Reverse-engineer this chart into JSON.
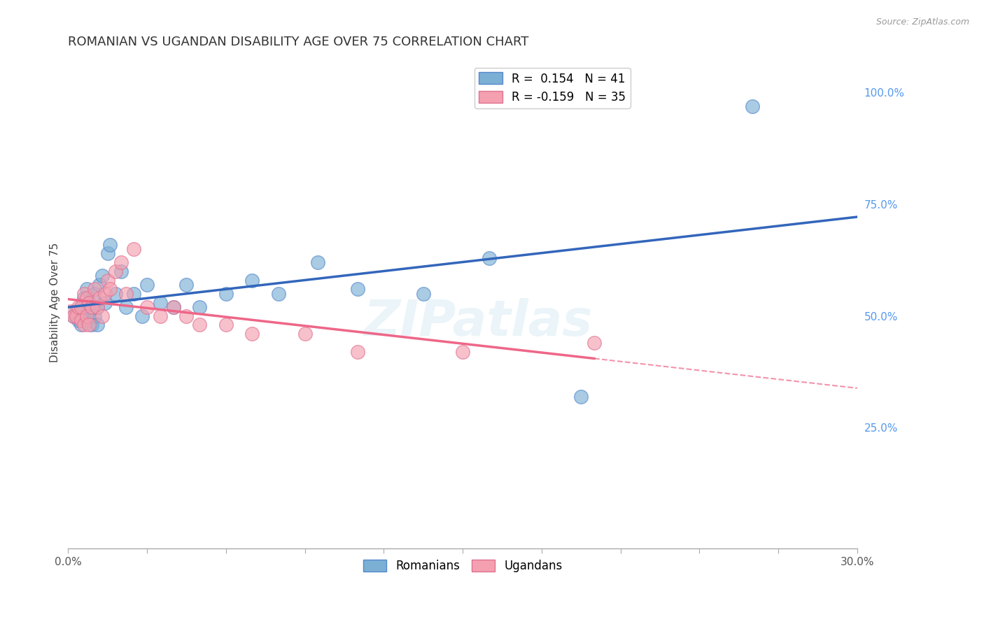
{
  "title": "ROMANIAN VS UGANDAN DISABILITY AGE OVER 75 CORRELATION CHART",
  "source": "Source: ZipAtlas.com",
  "ylabel": "Disability Age Over 75",
  "right_yticks": [
    0.0,
    0.25,
    0.5,
    0.75,
    1.0
  ],
  "right_yticklabels": [
    "",
    "25.0%",
    "50.0%",
    "75.0%",
    "100.0%"
  ],
  "xlim": [
    0.0,
    0.3
  ],
  "ylim": [
    -0.02,
    1.08
  ],
  "blue_R": 0.154,
  "blue_N": 41,
  "pink_R": -0.159,
  "pink_N": 35,
  "blue_color": "#7BAFD4",
  "pink_color": "#F4A0B0",
  "blue_edge_color": "#5588CC",
  "pink_edge_color": "#E07090",
  "blue_line_color": "#3366BB",
  "pink_line_color": "#EE6688",
  "watermark": "ZIPatlas",
  "legend_blue_label": "Romanians",
  "legend_pink_label": "Ugandans",
  "blue_scatter_x": [
    0.002,
    0.003,
    0.004,
    0.005,
    0.005,
    0.006,
    0.006,
    0.007,
    0.007,
    0.008,
    0.008,
    0.009,
    0.009,
    0.01,
    0.01,
    0.011,
    0.011,
    0.012,
    0.013,
    0.014,
    0.015,
    0.016,
    0.018,
    0.02,
    0.022,
    0.025,
    0.028,
    0.03,
    0.035,
    0.04,
    0.045,
    0.05,
    0.06,
    0.07,
    0.08,
    0.095,
    0.11,
    0.135,
    0.16,
    0.195,
    0.26
  ],
  "blue_scatter_y": [
    0.5,
    0.51,
    0.49,
    0.52,
    0.48,
    0.54,
    0.5,
    0.56,
    0.49,
    0.53,
    0.51,
    0.52,
    0.48,
    0.55,
    0.5,
    0.52,
    0.48,
    0.57,
    0.59,
    0.53,
    0.64,
    0.66,
    0.55,
    0.6,
    0.52,
    0.55,
    0.5,
    0.57,
    0.53,
    0.52,
    0.57,
    0.52,
    0.55,
    0.58,
    0.55,
    0.62,
    0.56,
    0.55,
    0.63,
    0.32,
    0.97
  ],
  "pink_scatter_x": [
    0.001,
    0.002,
    0.003,
    0.004,
    0.005,
    0.005,
    0.006,
    0.006,
    0.007,
    0.007,
    0.008,
    0.008,
    0.009,
    0.01,
    0.011,
    0.012,
    0.013,
    0.014,
    0.015,
    0.016,
    0.018,
    0.02,
    0.022,
    0.025,
    0.03,
    0.035,
    0.04,
    0.045,
    0.05,
    0.06,
    0.07,
    0.09,
    0.11,
    0.15,
    0.2
  ],
  "pink_scatter_y": [
    0.51,
    0.5,
    0.5,
    0.52,
    0.52,
    0.49,
    0.55,
    0.48,
    0.54,
    0.5,
    0.53,
    0.48,
    0.52,
    0.56,
    0.52,
    0.54,
    0.5,
    0.55,
    0.58,
    0.56,
    0.6,
    0.62,
    0.55,
    0.65,
    0.52,
    0.5,
    0.52,
    0.5,
    0.48,
    0.48,
    0.46,
    0.46,
    0.42,
    0.42,
    0.44
  ],
  "grid_color": "#CCCCCC",
  "background_color": "#FFFFFF",
  "title_fontsize": 13,
  "axis_label_fontsize": 11,
  "tick_fontsize": 11,
  "legend_fontsize": 12
}
